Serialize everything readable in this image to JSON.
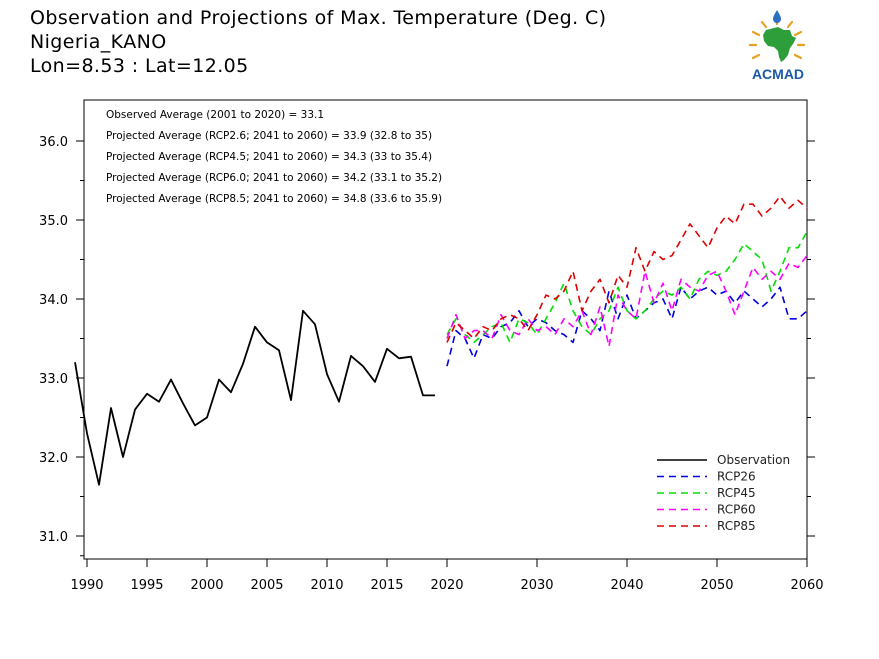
{
  "header": {
    "title_line1": "Observation and Projections of Max. Temperature (Deg. C)",
    "title_line2": "Nigeria_KANO",
    "title_line3": "Lon=8.53 : Lat=12.05"
  },
  "logo": {
    "text": "ACMAD",
    "icon": "acmad-africa-logo"
  },
  "colors": {
    "observation": "#000000",
    "rcp26": "#0000e0",
    "rcp45": "#00e000",
    "rcp60": "#ff00ff",
    "rcp85": "#e00000"
  },
  "chart_data": {
    "type": "line",
    "title": "Observation and Projections of Max. Temperature (Deg. C)",
    "xlabel": "",
    "ylabel": "",
    "xlim": [
      1989,
      2060
    ],
    "ylim": [
      30.7,
      36.5
    ],
    "grid": false,
    "legend_position": "bottom-right",
    "x_ticks": [
      1990,
      1995,
      2000,
      2005,
      2010,
      2015,
      2020,
      2030,
      2040,
      2050,
      2060
    ],
    "y_ticks": [
      31.0,
      32.0,
      33.0,
      34.0,
      35.0,
      36.0
    ],
    "y_tick_labels": [
      "31.0",
      "32.0",
      "33.0",
      "34.0",
      "35.0",
      "36.0"
    ],
    "annotations": [
      "Observed Average (2001 to 2020) = 33.1",
      "Projected Average (RCP2.6; 2041 to 2060) = 33.9 (32.8 to 35)",
      "Projected Average (RCP4.5; 2041 to 2060) = 34.3 (33 to 35.4)",
      "Projected Average (RCP6.0; 2041 to 2060) = 34.2 (33.1 to 35.2)",
      "Projected Average (RCP8.5; 2041 to 2060) = 34.8 (33.6 to 35.9)"
    ],
    "series": [
      {
        "name": "Observation",
        "key": "observation",
        "dash": false,
        "x": [
          1989,
          1990,
          1991,
          1992,
          1993,
          1994,
          1995,
          1996,
          1997,
          1998,
          1999,
          2000,
          2001,
          2002,
          2003,
          2004,
          2005,
          2006,
          2007,
          2008,
          2009,
          2010,
          2011,
          2012,
          2013,
          2014,
          2015,
          2016,
          2017,
          2018,
          2019
        ],
        "values": [
          33.2,
          32.3,
          31.65,
          32.62,
          32.0,
          32.6,
          32.8,
          32.7,
          32.98,
          32.68,
          32.4,
          32.5,
          32.98,
          32.82,
          33.18,
          33.65,
          33.45,
          33.35,
          32.72,
          33.85,
          33.68,
          33.05,
          32.7,
          33.28,
          33.15,
          32.95,
          33.37,
          33.25,
          33.27,
          32.78,
          32.78
        ]
      },
      {
        "name": "RCP26",
        "key": "rcp26",
        "dash": true,
        "x": [
          2020,
          2021,
          2022,
          2023,
          2024,
          2025,
          2026,
          2027,
          2028,
          2029,
          2030,
          2031,
          2032,
          2033,
          2034,
          2035,
          2036,
          2037,
          2038,
          2039,
          2040,
          2041,
          2042,
          2043,
          2044,
          2045,
          2046,
          2047,
          2048,
          2049,
          2050,
          2051,
          2052,
          2053,
          2054,
          2055,
          2056,
          2057,
          2058,
          2059,
          2060
        ],
        "values": [
          33.15,
          33.6,
          33.5,
          33.25,
          33.55,
          33.5,
          33.65,
          33.7,
          33.85,
          33.65,
          33.75,
          33.7,
          33.6,
          33.55,
          33.45,
          33.85,
          33.75,
          33.6,
          34.1,
          33.75,
          34.05,
          33.75,
          33.85,
          33.95,
          34.0,
          33.75,
          34.15,
          34.0,
          34.1,
          34.15,
          34.05,
          34.1,
          33.95,
          34.1,
          34.0,
          33.9,
          34.0,
          34.15,
          33.75,
          33.75,
          33.85
        ]
      },
      {
        "name": "RCP45",
        "key": "rcp45",
        "dash": true,
        "x": [
          2020,
          2021,
          2022,
          2023,
          2024,
          2025,
          2026,
          2027,
          2028,
          2029,
          2030,
          2031,
          2032,
          2033,
          2034,
          2035,
          2036,
          2037,
          2038,
          2039,
          2040,
          2041,
          2042,
          2043,
          2044,
          2045,
          2046,
          2047,
          2048,
          2049,
          2050,
          2051,
          2052,
          2053,
          2054,
          2055,
          2056,
          2057,
          2058,
          2059,
          2060
        ],
        "values": [
          33.55,
          33.75,
          33.55,
          33.45,
          33.55,
          33.65,
          33.7,
          33.45,
          33.75,
          33.7,
          33.55,
          33.75,
          33.95,
          34.2,
          33.85,
          33.65,
          33.55,
          33.75,
          33.85,
          34.15,
          33.85,
          33.75,
          33.85,
          34.0,
          34.1,
          34.05,
          34.15,
          34.0,
          34.25,
          34.35,
          34.3,
          34.35,
          34.5,
          34.7,
          34.6,
          34.5,
          34.1,
          34.35,
          34.65,
          34.65,
          34.85
        ]
      },
      {
        "name": "RCP60",
        "key": "rcp60",
        "dash": true,
        "x": [
          2020,
          2021,
          2022,
          2023,
          2024,
          2025,
          2026,
          2027,
          2028,
          2029,
          2030,
          2031,
          2032,
          2033,
          2034,
          2035,
          2036,
          2037,
          2038,
          2039,
          2040,
          2041,
          2042,
          2043,
          2044,
          2045,
          2046,
          2047,
          2048,
          2049,
          2050,
          2051,
          2052,
          2053,
          2054,
          2055,
          2056,
          2057,
          2058,
          2059,
          2060
        ],
        "values": [
          33.5,
          33.8,
          33.5,
          33.6,
          33.6,
          33.5,
          33.8,
          33.6,
          33.55,
          33.75,
          33.6,
          33.65,
          33.55,
          33.75,
          33.65,
          33.85,
          33.55,
          33.9,
          33.4,
          34.05,
          33.85,
          33.75,
          34.35,
          33.95,
          34.2,
          33.85,
          34.25,
          34.15,
          34.1,
          34.3,
          34.35,
          34.1,
          33.8,
          34.1,
          34.4,
          34.25,
          34.35,
          34.25,
          34.45,
          34.4,
          34.55
        ]
      },
      {
        "name": "RCP85",
        "key": "rcp85",
        "dash": true,
        "x": [
          2020,
          2021,
          2022,
          2023,
          2024,
          2025,
          2026,
          2027,
          2028,
          2029,
          2030,
          2031,
          2032,
          2033,
          2034,
          2035,
          2036,
          2037,
          2038,
          2039,
          2040,
          2041,
          2042,
          2043,
          2044,
          2045,
          2046,
          2047,
          2048,
          2049,
          2050,
          2051,
          2052,
          2053,
          2054,
          2055,
          2056,
          2057,
          2058,
          2059,
          2060
        ],
        "values": [
          33.45,
          33.7,
          33.6,
          33.5,
          33.65,
          33.6,
          33.75,
          33.8,
          33.75,
          33.6,
          33.8,
          34.05,
          34.0,
          34.1,
          34.35,
          33.85,
          34.1,
          34.25,
          33.95,
          34.3,
          34.15,
          34.65,
          34.35,
          34.6,
          34.5,
          34.55,
          34.75,
          34.95,
          34.8,
          34.65,
          34.9,
          35.05,
          34.95,
          35.2,
          35.2,
          35.05,
          35.15,
          35.3,
          35.15,
          35.25,
          35.15
        ]
      }
    ]
  }
}
